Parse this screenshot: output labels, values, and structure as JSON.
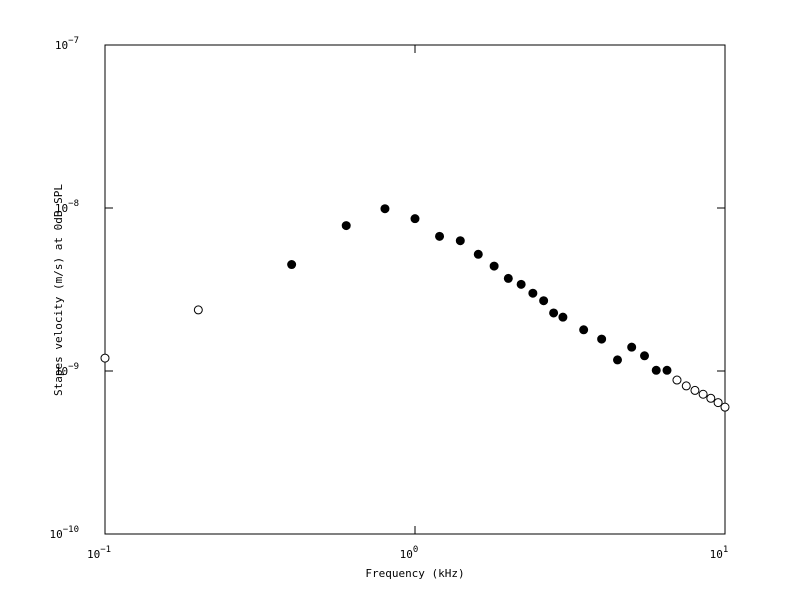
{
  "chart_data": {
    "type": "scatter",
    "x_label": "Frequency (kHz)",
    "y_label": "Stapes velocity (m/s) at 0dB SPL",
    "x_scale": "log",
    "y_scale": "log",
    "marker": "circle",
    "xlim": [
      0.1,
      10
    ],
    "ylim": [
      1e-10,
      1e-07
    ],
    "xticks": [
      {
        "value": 0.1,
        "label": "10−1"
      },
      {
        "value": 1,
        "label": "100"
      },
      {
        "value": 10,
        "label": "101"
      }
    ],
    "yticks": [
      {
        "value": 1e-10,
        "label": "10−10"
      },
      {
        "value": 1e-09,
        "label": "10−9"
      },
      {
        "value": 1e-08,
        "label": "10−8"
      },
      {
        "value": 1e-07,
        "label": "10−7"
      }
    ],
    "series": [
      {
        "color": "#000000",
        "filled": true,
        "x": [
          0.4,
          0.6,
          0.8,
          1.0,
          1.2,
          1.4,
          1.6,
          1.8,
          2.0,
          2.2,
          2.4,
          2.6,
          2.8,
          3.0,
          3.5,
          4.0,
          4.5,
          5.0,
          5.5,
          6.0,
          6.5
        ],
        "values": [
          4.5e-09,
          7.8e-09,
          9.9e-09,
          8.6e-09,
          6.7e-09,
          6.3e-09,
          5.2e-09,
          4.4e-09,
          3.7e-09,
          3.4e-09,
          3e-09,
          2.7e-09,
          2.27e-09,
          2.14e-09,
          1.79e-09,
          1.57e-09,
          1.17e-09,
          1.4e-09,
          1.24e-09,
          1.01e-09,
          1.01e-09
        ]
      },
      {
        "color": "#000000",
        "filled": false,
        "x": [
          0.1,
          0.2,
          7.0,
          7.5,
          8.0,
          8.5,
          9.0,
          9.5,
          10.0
        ],
        "values": [
          1.2e-09,
          2.37e-09,
          8.8e-10,
          8.1e-10,
          7.6e-10,
          7.2e-10,
          6.8e-10,
          6.4e-10,
          6e-10
        ]
      }
    ]
  }
}
